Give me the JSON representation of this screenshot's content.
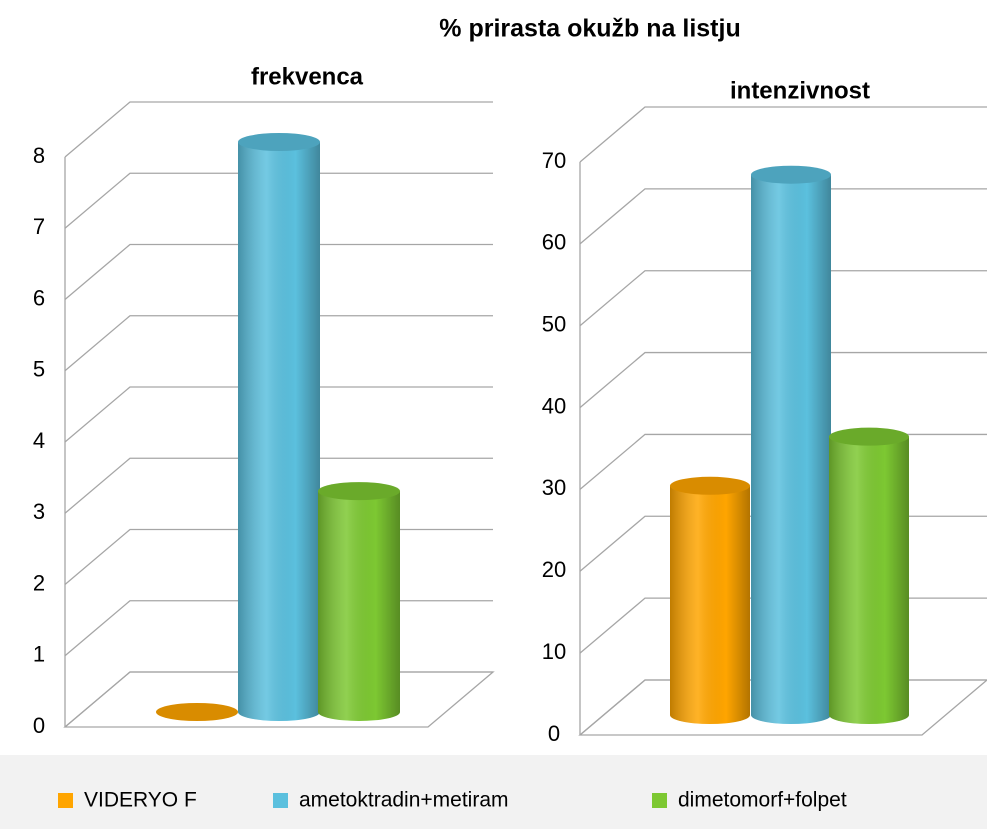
{
  "title": "% prirasta okužb na listju",
  "chart_data": [
    {
      "type": "bar",
      "title": "frekvenca",
      "series": [
        {
          "name": "VIDERYO F",
          "color": "#ffa500",
          "values": [
            0
          ]
        },
        {
          "name": "ametoktradin+metiram",
          "color": "#5bc0de",
          "values": [
            8
          ]
        },
        {
          "name": "dimetomorf+folpet",
          "color": "#7dc832",
          "values": [
            3.1
          ]
        }
      ],
      "ylim": [
        0,
        8
      ],
      "yticks": [
        0,
        1,
        2,
        3,
        4,
        5,
        6,
        7,
        8
      ],
      "grid": true
    },
    {
      "type": "bar",
      "title": "intenzivnost",
      "series": [
        {
          "color": "#ffa500",
          "values": [
            28
          ]
        },
        {
          "color": "#5bc0de",
          "values": [
            66
          ]
        },
        {
          "color": "#7dc832",
          "values": [
            34
          ]
        }
      ],
      "ylim": [
        0,
        70
      ],
      "yticks": [
        0,
        10,
        20,
        30,
        40,
        50,
        60,
        70
      ],
      "grid": true
    }
  ]
}
